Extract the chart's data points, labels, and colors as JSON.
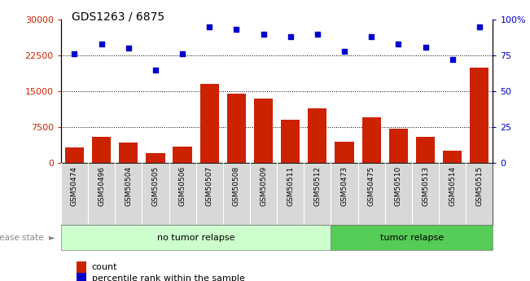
{
  "title": "GDS1263 / 6875",
  "samples": [
    "GSM50474",
    "GSM50496",
    "GSM50504",
    "GSM50505",
    "GSM50506",
    "GSM50507",
    "GSM50508",
    "GSM50509",
    "GSM50511",
    "GSM50512",
    "GSM50473",
    "GSM50475",
    "GSM50510",
    "GSM50513",
    "GSM50514",
    "GSM50515"
  ],
  "counts": [
    3200,
    5500,
    4200,
    2000,
    3500,
    16500,
    14500,
    13500,
    9000,
    11500,
    4500,
    9500,
    7200,
    5500,
    2500,
    20000
  ],
  "percentiles": [
    76,
    83,
    80,
    65,
    76,
    95,
    93,
    90,
    88,
    90,
    78,
    88,
    83,
    81,
    72,
    95
  ],
  "no_tumor_count": 10,
  "tumor_count": 6,
  "bar_color": "#cc2200",
  "scatter_color": "#0000cc",
  "ylim_left": [
    0,
    30000
  ],
  "ylim_right": [
    0,
    100
  ],
  "yticks_left": [
    0,
    7500,
    15000,
    22500,
    30000
  ],
  "yticks_right": [
    0,
    25,
    50,
    75,
    100
  ],
  "grid_values": [
    7500,
    15000,
    22500
  ],
  "bg_color_plot": "#ffffff",
  "tick_bg_color": "#d8d8d8",
  "no_tumor_color": "#ccffcc",
  "tumor_color": "#55cc55",
  "disease_label": "disease state",
  "no_tumor_label": "no tumor relapse",
  "tumor_label": "tumor relapse",
  "legend_count": "count",
  "legend_pct": "percentile rank within the sample"
}
